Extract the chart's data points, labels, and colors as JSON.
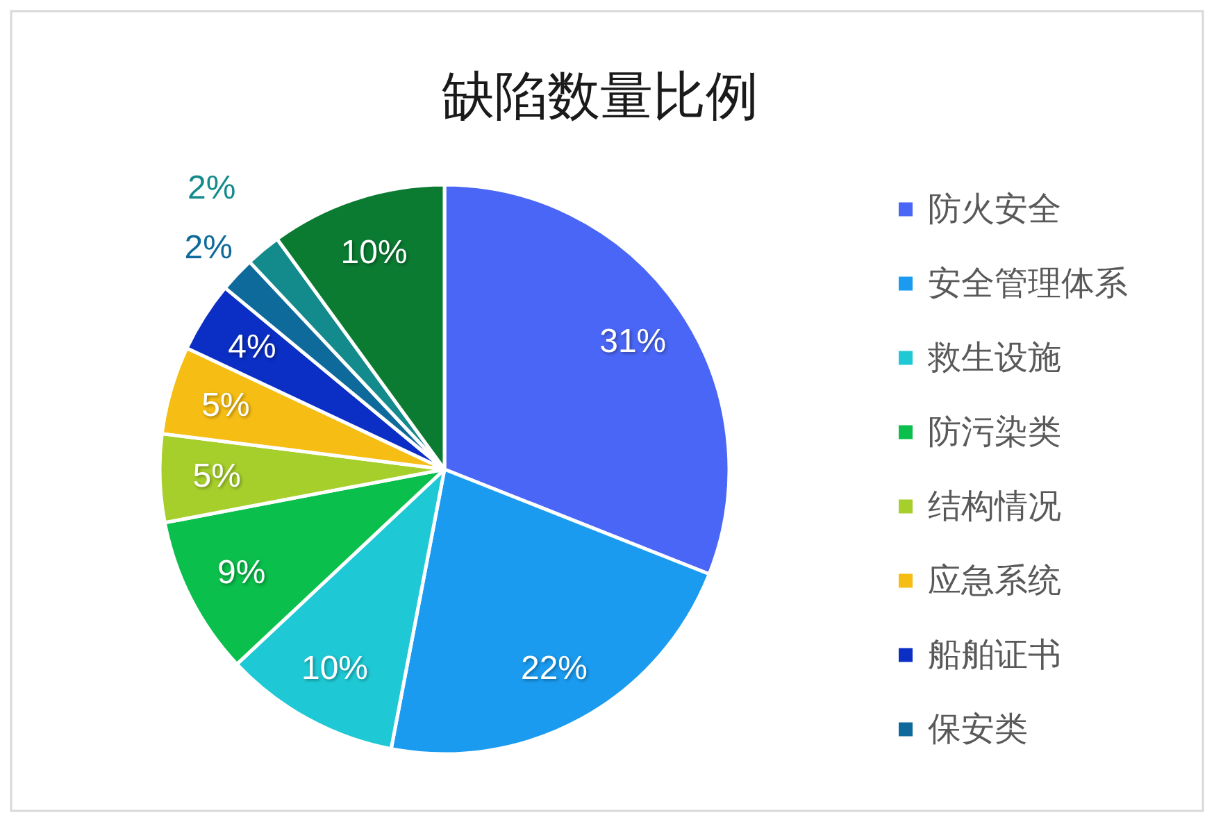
{
  "chart_data": {
    "type": "pie",
    "title": "缺陷数量比例",
    "categories": [
      "防火安全",
      "安全管理体系",
      "救生设施",
      "防污染类",
      "结构情况",
      "应急系统",
      "船舶证书",
      "保安类",
      null,
      null
    ],
    "values": [
      31,
      22,
      10,
      9,
      5,
      5,
      4,
      2,
      2,
      10
    ],
    "colors": [
      "#4a66f6",
      "#1a9bf0",
      "#1ec9d5",
      "#0abf4b",
      "#a6cf2b",
      "#f6bd14",
      "#0b2ec4",
      "#0f6a9c",
      "#138a8c",
      "#0b7b32"
    ],
    "value_labels": [
      "31%",
      "22%",
      "10%",
      "9%",
      "5%",
      "5%",
      "4%",
      "2%",
      "2%",
      "10%"
    ],
    "legend": "right"
  }
}
